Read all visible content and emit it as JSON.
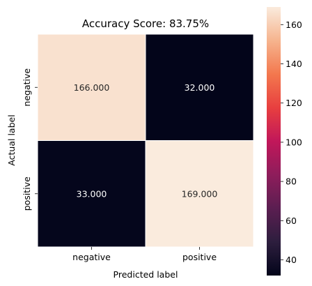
{
  "chart_data": {
    "type": "heatmap",
    "title": "Accuracy Score: 83.75%",
    "xlabel": "Predicted label",
    "ylabel": "Actual label",
    "x_categories": [
      "negative",
      "positive"
    ],
    "y_categories": [
      "negative",
      "positive"
    ],
    "values": [
      [
        166.0,
        32.0
      ],
      [
        33.0,
        169.0
      ]
    ],
    "cell_labels": [
      [
        "166.000",
        "32.000"
      ],
      [
        "33.000",
        "169.000"
      ]
    ],
    "colorbar": {
      "range": [
        32,
        169
      ],
      "ticks": [
        40,
        60,
        80,
        100,
        120,
        140,
        160
      ],
      "colormap": "rocket"
    }
  }
}
